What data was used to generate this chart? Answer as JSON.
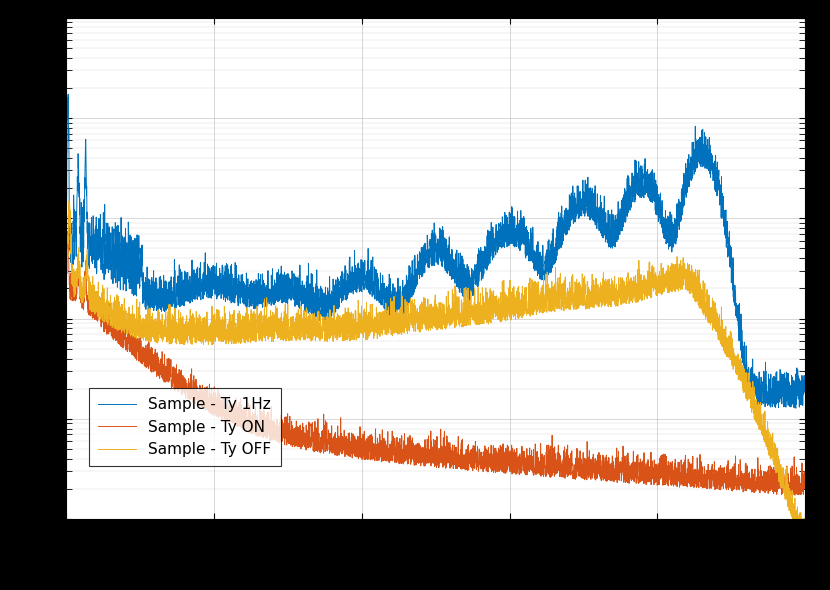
{
  "title": "",
  "xlabel": "",
  "ylabel": "",
  "background_color": "#ffffff",
  "grid_color": "#b0b0b0",
  "line1_color": "#0072BD",
  "line2_color": "#D95319",
  "line3_color": "#EDB120",
  "line1_label": "Sample - Ty 1Hz",
  "line2_label": "Sample - Ty ON",
  "line3_label": "Sample - Ty OFF",
  "xlim": [
    0,
    500
  ],
  "ylim": [
    1e-09,
    0.0001
  ],
  "legend_loc": "lower left",
  "fig_facecolor": "#000000",
  "ax_facecolor": "#ffffff"
}
